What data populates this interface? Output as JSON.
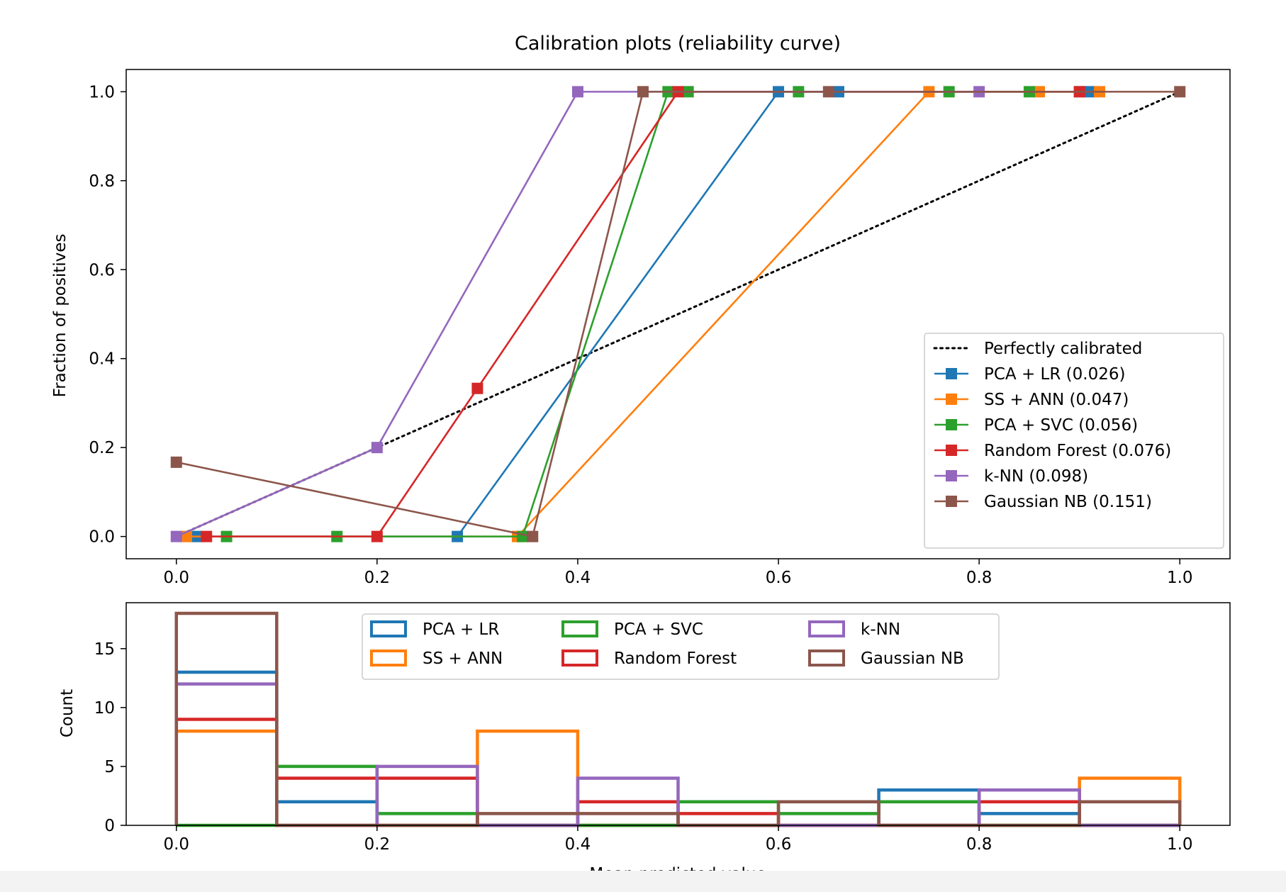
{
  "chart_data": [
    {
      "type": "line",
      "title": "Calibration plots  (reliability curve)",
      "xlabel": "",
      "ylabel": "Fraction of positives",
      "xlim": [
        -0.05,
        1.05
      ],
      "ylim": [
        -0.05,
        1.05
      ],
      "xticks": [
        "0.0",
        "0.2",
        "0.4",
        "0.6",
        "0.8",
        "1.0"
      ],
      "yticks": [
        "0.0",
        "0.2",
        "0.4",
        "0.6",
        "0.8",
        "1.0"
      ],
      "grid": false,
      "legend_position": "lower-right",
      "reference": {
        "name": "Perfectly calibrated",
        "x": [
          0,
          1
        ],
        "y": [
          0,
          1
        ],
        "style": "dotted",
        "color": "#000000"
      },
      "series": [
        {
          "name": "PCA + LR (0.026)",
          "color": "#1f77b4",
          "x": [
            0.02,
            0.28,
            0.6,
            0.66,
            0.9,
            0.91
          ],
          "y": [
            0,
            0,
            1,
            1,
            1,
            1
          ]
        },
        {
          "name": "SS + ANN (0.047)",
          "color": "#ff7f0e",
          "x": [
            0.01,
            0.34,
            0.75,
            0.86,
            0.92
          ],
          "y": [
            0,
            0,
            1,
            1,
            1
          ]
        },
        {
          "name": "PCA + SVC (0.056)",
          "color": "#2ca02c",
          "x": [
            0.05,
            0.16,
            0.345,
            0.49,
            0.51,
            0.62,
            0.77,
            0.85
          ],
          "y": [
            0,
            0,
            0,
            1,
            1,
            1,
            1,
            1
          ]
        },
        {
          "name": "Random Forest (0.076)",
          "color": "#d62728",
          "x": [
            0.03,
            0.2,
            0.3,
            0.5,
            0.9
          ],
          "y": [
            0,
            0,
            0.333,
            1,
            1
          ]
        },
        {
          "name": "k-NN (0.098)",
          "color": "#9467bd",
          "x": [
            0.0,
            0.2,
            0.4,
            0.8
          ],
          "y": [
            0,
            0.2,
            1,
            1
          ]
        },
        {
          "name": "Gaussian NB (0.151)",
          "color": "#8c564b",
          "x": [
            0.0,
            0.355,
            0.465,
            0.65,
            1.0
          ],
          "y": [
            0.167,
            0,
            1,
            1,
            1
          ]
        }
      ]
    },
    {
      "type": "bar",
      "histtype": "step",
      "title": "",
      "xlabel": "Mean predicted value",
      "ylabel": "Count",
      "xlim": [
        -0.05,
        1.05
      ],
      "ylim": [
        0,
        18.9
      ],
      "xticks": [
        "0.0",
        "0.2",
        "0.4",
        "0.6",
        "0.8",
        "1.0"
      ],
      "yticks": [
        "0",
        "5",
        "10",
        "15"
      ],
      "grid": false,
      "legend_position": "top-center",
      "legend_columns": 3,
      "bin_edges": [
        0.0,
        0.1,
        0.2,
        0.3,
        0.4,
        0.5,
        0.6,
        0.7,
        0.8,
        0.9,
        1.0
      ],
      "series": [
        {
          "name": "PCA + LR",
          "color": "#1f77b4",
          "values": [
            13,
            2,
            0,
            0,
            0,
            0,
            0,
            3,
            1,
            0
          ]
        },
        {
          "name": "SS + ANN",
          "color": "#ff7f0e",
          "values": [
            8,
            0,
            0,
            8,
            0,
            0,
            0,
            0,
            0,
            4
          ]
        },
        {
          "name": "PCA + SVC",
          "color": "#2ca02c",
          "values": [
            0,
            5,
            1,
            0,
            0,
            2,
            1,
            2,
            0,
            0
          ]
        },
        {
          "name": "Random Forest",
          "color": "#d62728",
          "values": [
            9,
            4,
            4,
            0,
            2,
            1,
            0,
            0,
            2,
            0
          ]
        },
        {
          "name": "k-NN",
          "color": "#9467bd",
          "values": [
            12,
            0,
            5,
            0,
            4,
            0,
            0,
            0,
            3,
            0
          ]
        },
        {
          "name": "Gaussian NB",
          "color": "#8c564b",
          "values": [
            18,
            0,
            0,
            1,
            1,
            0,
            2,
            0,
            0,
            2
          ]
        }
      ]
    }
  ]
}
